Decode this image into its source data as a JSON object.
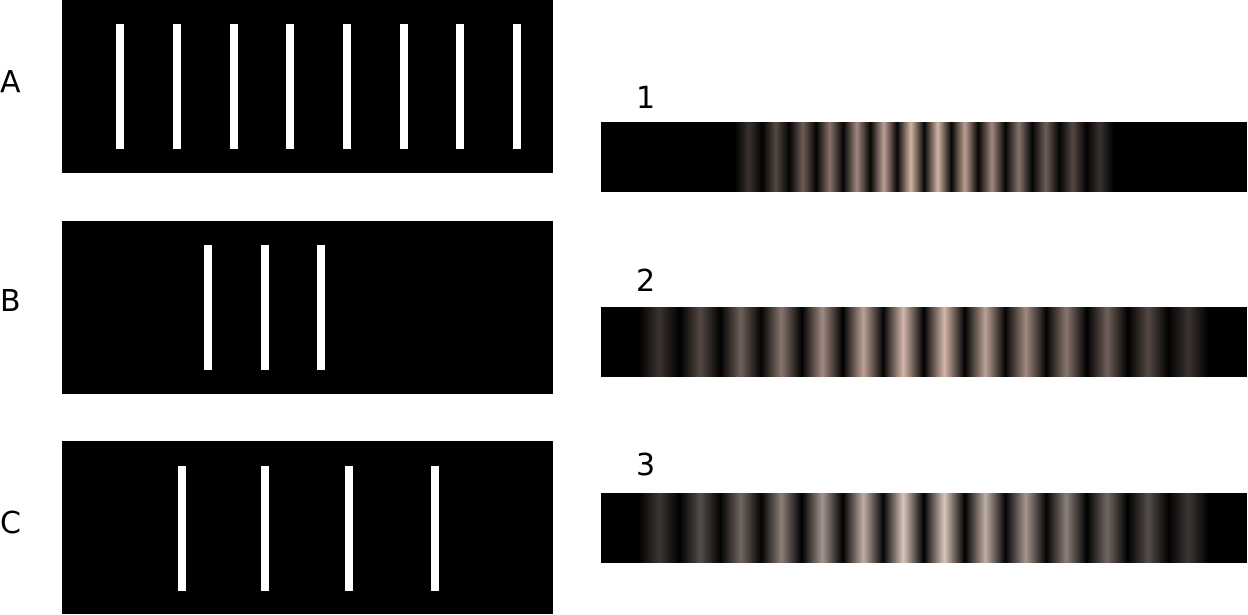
{
  "slit_panels": [
    {
      "label": "A",
      "slits": 8
    },
    {
      "label": "B",
      "slits": 3
    },
    {
      "label": "C",
      "slits": 4
    }
  ],
  "patterns": [
    {
      "label": "1",
      "fringe_count": 14,
      "tint": "#e0bfb0"
    },
    {
      "label": "2",
      "fringe_count": 14,
      "tint": "#e2c3b5"
    },
    {
      "label": "3",
      "fringe_count": 14,
      "tint": "#e8d2c8"
    }
  ],
  "colors": {
    "background": "#ffffff",
    "panel": "#000000",
    "slit": "#ffffff"
  }
}
